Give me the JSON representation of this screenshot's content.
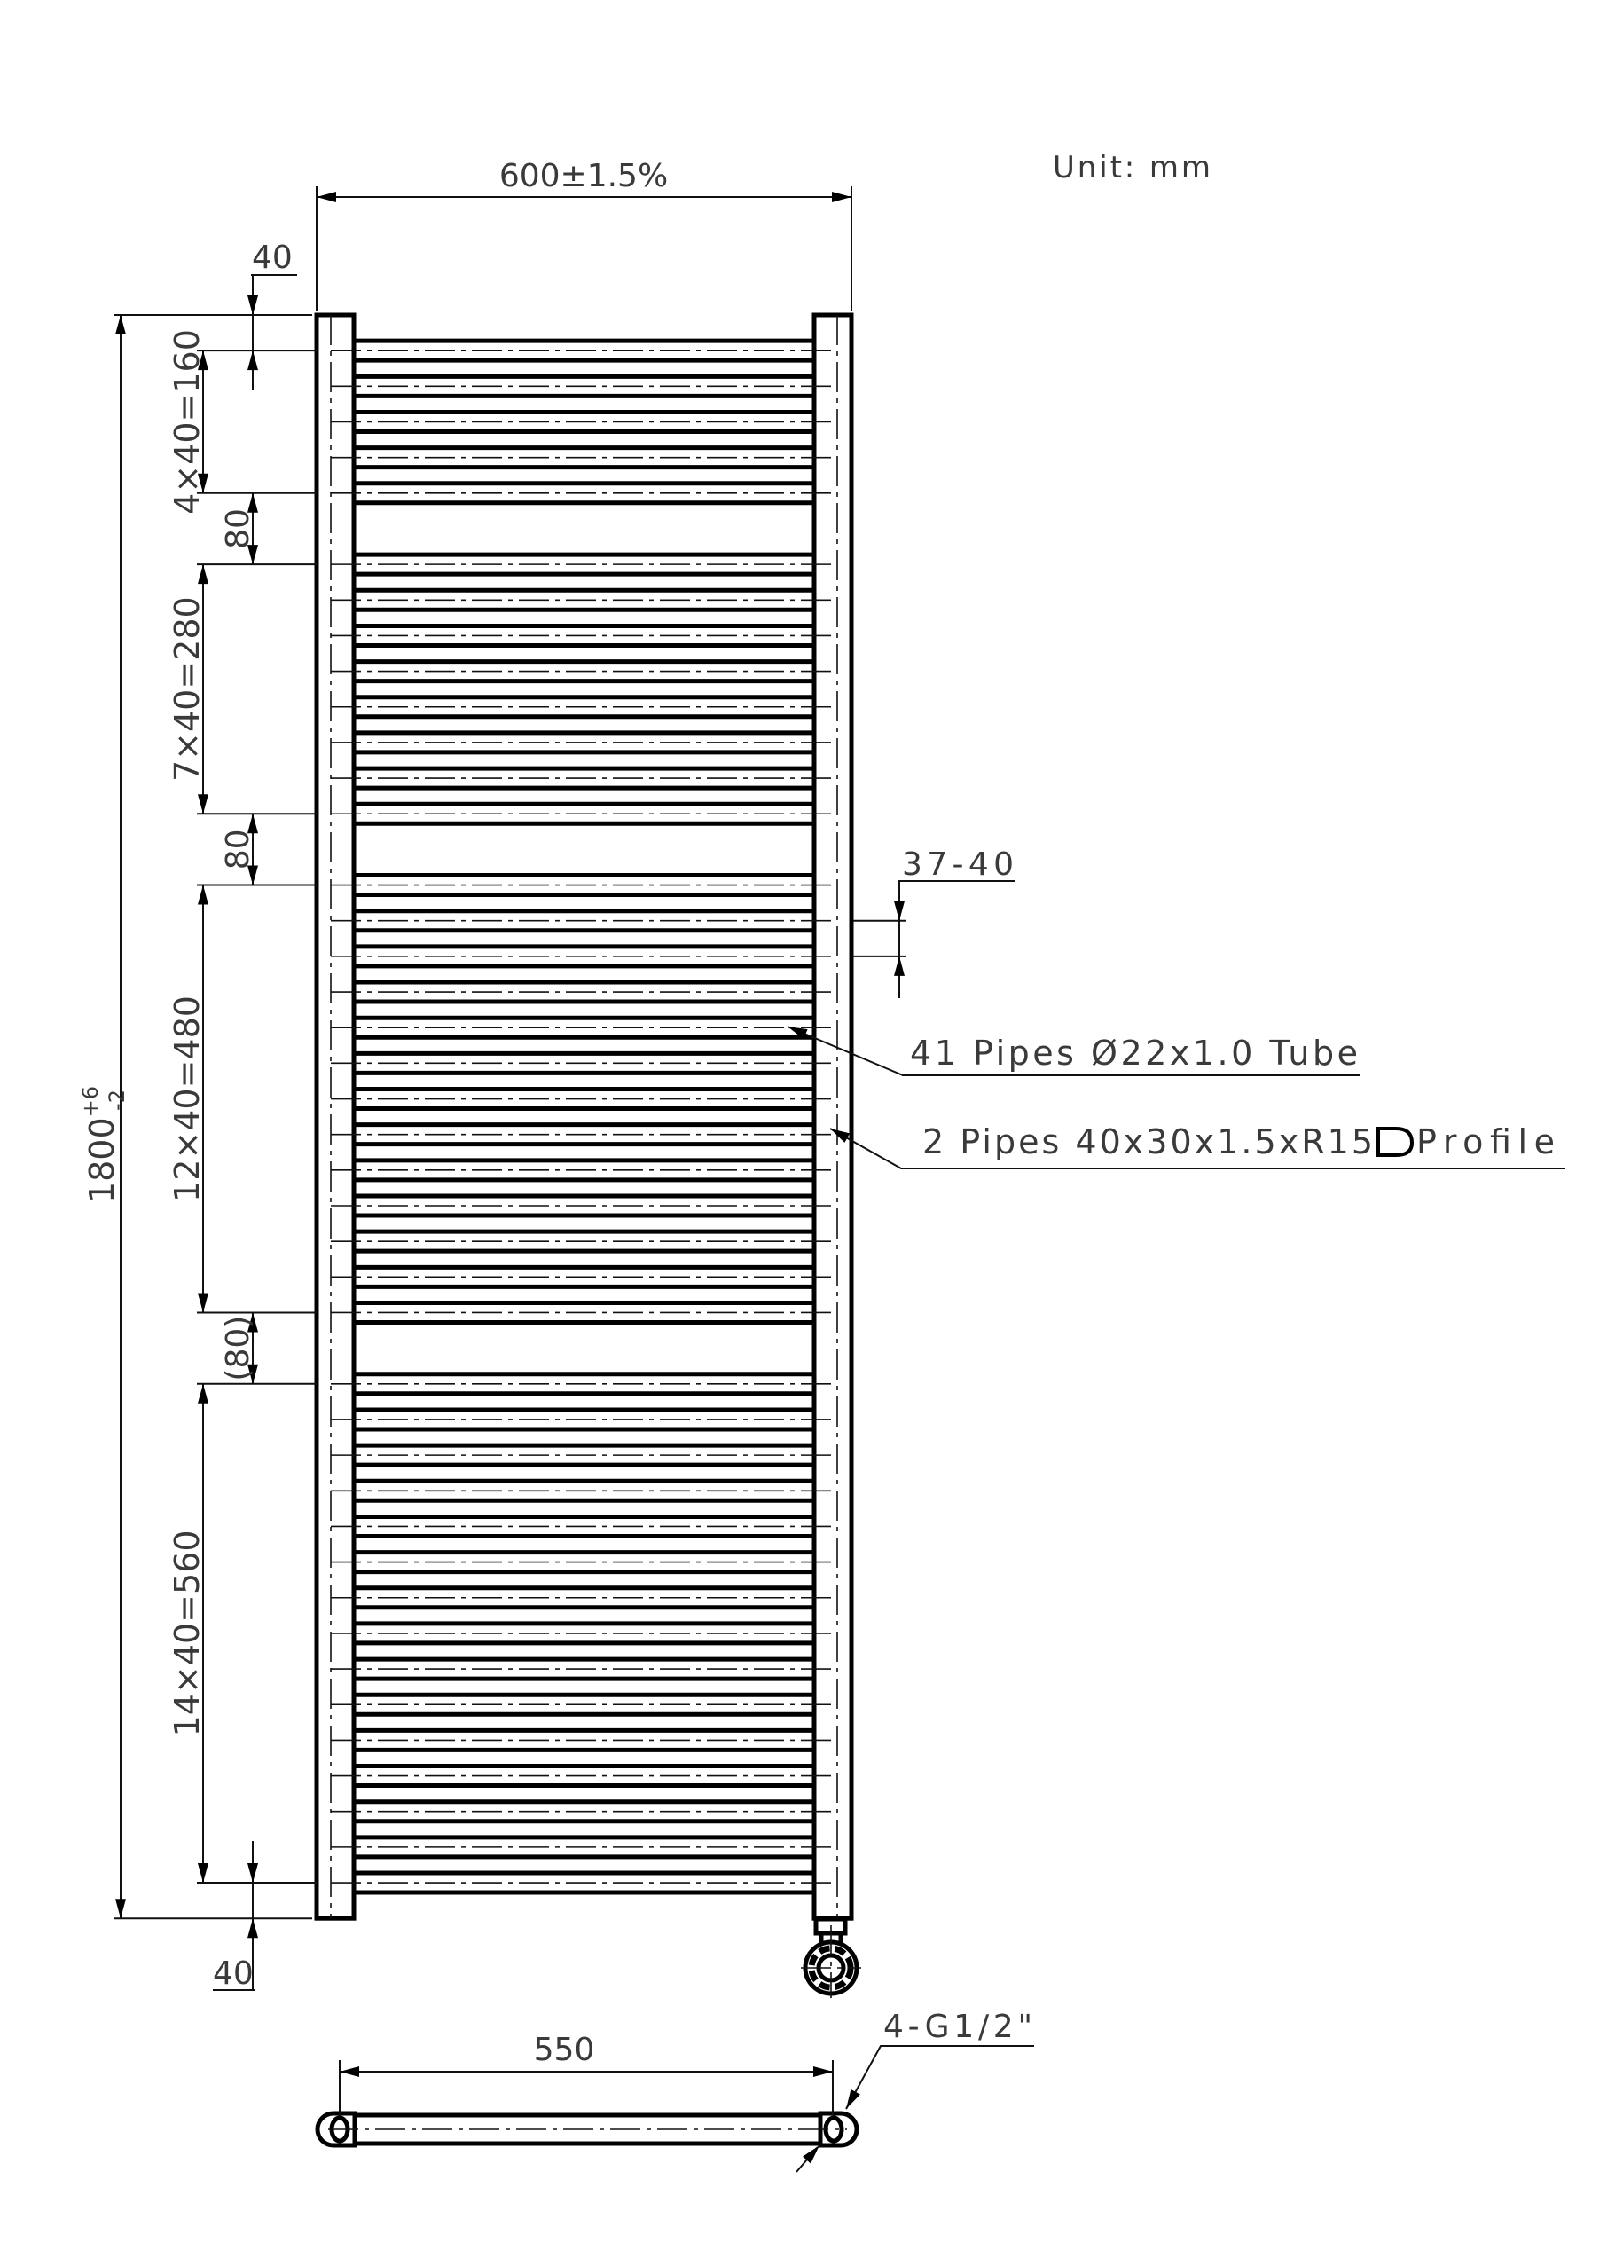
{
  "unit_label": "Unit: mm",
  "width_dim": "600±1.5%",
  "height_dim": {
    "value": "1800",
    "upper_tol": "+6",
    "lower_tol": "-2"
  },
  "top_offset": "40",
  "bottom_offset": "40",
  "pipe_groups": [
    {
      "label": "4×40=160",
      "count": 5,
      "pitch_mm": 40
    },
    {
      "label": "7×40=280",
      "count": 8,
      "pitch_mm": 40
    },
    {
      "label": "12×40=480",
      "count": 13,
      "pitch_mm": 40
    },
    {
      "label": "14×40=560",
      "count": 15,
      "pitch_mm": 40
    }
  ],
  "gaps": [
    "80",
    "80",
    "(80)"
  ],
  "gap_mm": 80,
  "total_height_mm": 1800,
  "edge_offset_mm": 40,
  "pipe_pitch_label": "37-40",
  "tube_callout": "41 Pipes Ø22x1.0 Tube",
  "profile_callout": {
    "text": "2 Pipes 40x30x1.5xR15",
    "symbol": "d-profile-icon",
    "suffix": "Profile"
  },
  "bottom_view": {
    "centre_distance": "550",
    "connection": "4-G1/2\""
  }
}
